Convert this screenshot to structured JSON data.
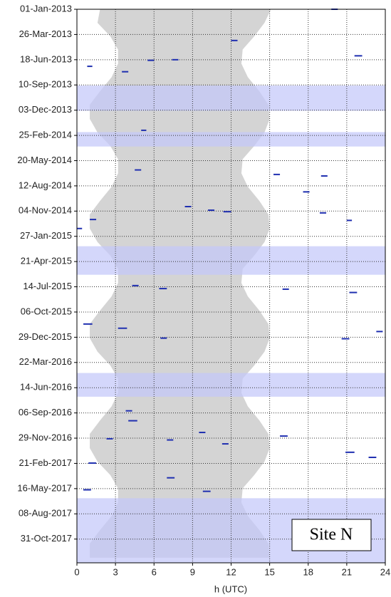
{
  "chart_data": {
    "type": "timeline",
    "xlabel": "h (UTC)",
    "legend_text": "Site N",
    "xlim": [
      0,
      24
    ],
    "xticks": [
      0,
      3,
      6,
      9,
      12,
      15,
      18,
      21,
      24
    ],
    "ylim": [
      "01-Jan-2013",
      "18-Jan-2018"
    ],
    "yticks": [
      "01-Jan-2013",
      "26-Mar-2013",
      "18-Jun-2013",
      "10-Sep-2013",
      "03-Dec-2013",
      "25-Feb-2014",
      "20-May-2014",
      "12-Aug-2014",
      "04-Nov-2014",
      "27-Jan-2015",
      "21-Apr-2015",
      "14-Jul-2015",
      "06-Oct-2015",
      "29-Dec-2015",
      "22-Mar-2016",
      "14-Jun-2016",
      "06-Sep-2016",
      "29-Nov-2016",
      "21-Feb-2017",
      "16-May-2017",
      "08-Aug-2017",
      "31-Oct-2017"
    ],
    "grid": true,
    "daylight": {
      "color": "#d4d4d4",
      "dates": [
        "01-Jan-2013",
        "15-Feb-2013",
        "01-Apr-2013",
        "15-May-2013",
        "01-Jul-2013",
        "15-Aug-2013",
        "01-Oct-2013",
        "15-Nov-2013",
        "01-Jan-2014",
        "15-Feb-2014",
        "01-Apr-2014",
        "15-May-2014",
        "01-Jul-2014",
        "15-Aug-2014",
        "01-Oct-2014",
        "15-Nov-2014",
        "01-Jan-2015",
        "15-Feb-2015",
        "01-Apr-2015",
        "15-May-2015",
        "01-Jul-2015",
        "15-Aug-2015",
        "01-Oct-2015",
        "15-Nov-2015",
        "01-Jan-2016",
        "15-Feb-2016",
        "01-Apr-2016",
        "15-May-2016",
        "01-Jul-2016",
        "15-Aug-2016",
        "01-Oct-2016",
        "15-Nov-2016",
        "01-Jan-2017",
        "15-Feb-2017",
        "01-Apr-2017",
        "15-May-2017",
        "01-Jul-2017",
        "15-Aug-2017",
        "01-Oct-2017",
        "15-Nov-2017",
        "01-Jan-2018"
      ],
      "start": [
        1.8,
        1.6,
        2.6,
        3.2,
        3.2,
        2.7,
        1.8,
        1.0,
        1.0,
        1.6,
        2.6,
        3.2,
        3.2,
        2.7,
        1.8,
        1.0,
        1.0,
        1.6,
        2.6,
        3.2,
        3.2,
        2.7,
        1.8,
        1.0,
        1.0,
        1.6,
        2.6,
        3.2,
        3.2,
        2.7,
        1.8,
        1.0,
        1.0,
        1.6,
        2.6,
        3.2,
        3.2,
        2.7,
        1.8,
        1.0,
        1.0
      ],
      "end": [
        15.1,
        14.6,
        13.8,
        12.9,
        12.8,
        13.3,
        14.2,
        14.9,
        15.0,
        14.6,
        13.8,
        12.9,
        12.8,
        13.3,
        14.2,
        14.9,
        15.0,
        14.6,
        13.8,
        12.9,
        12.8,
        13.3,
        14.2,
        14.9,
        15.0,
        14.6,
        13.8,
        12.9,
        12.8,
        13.3,
        14.2,
        14.9,
        15.0,
        14.6,
        13.8,
        12.9,
        12.8,
        13.3,
        14.2,
        14.9,
        15.0
      ]
    },
    "gaps": {
      "color": "rgba(196,200,250,0.72)",
      "start": [
        "12-Sep-2013",
        "14-Feb-2014",
        "01-Mar-2015",
        "26-Apr-2016",
        "17-Jun-2017"
      ],
      "end": [
        "05-Dec-2013",
        "03-Apr-2014",
        "04-Jun-2015",
        "14-Jul-2016",
        "18-Jan-2018"
      ]
    },
    "events": {
      "color": "#1f2fb0",
      "dates": [
        "01-Jan-2013",
        "05-Jun-2013",
        "10-Jul-2013",
        "18-Jun-2013",
        "15-Apr-2013",
        "28-Jul-2013",
        "20-Jun-2013",
        "08-Feb-2014",
        "20-Jun-2014",
        "05-Jul-2014",
        "10-Jul-2014",
        "01-Sep-2014",
        "20-Oct-2014",
        "01-Nov-2014",
        "06-Nov-2014",
        "10-Nov-2014",
        "02-Dec-2014",
        "05-Dec-2014",
        "01-Jan-2015",
        "10-Jul-2015",
        "20-Jul-2015",
        "22-Jul-2015",
        "02-Aug-2015",
        "15-Nov-2015",
        "29-Nov-2015",
        "10-Dec-2015",
        "01-Jan-2016",
        "03-Jan-2016",
        "30-Aug-2016",
        "02-Oct-2016",
        "10-Nov-2016",
        "22-Nov-2016",
        "01-Dec-2016",
        "05-Dec-2016",
        "18-Dec-2016",
        "15-Jan-2017",
        "01-Feb-2017",
        "20-Feb-2017",
        "10-Apr-2017",
        "20-May-2017",
        "25-May-2017"
      ],
      "start": [
        19.8,
        21.6,
        0.8,
        7.4,
        12.0,
        3.5,
        5.5,
        5.0,
        4.5,
        15.3,
        19.0,
        17.6,
        8.4,
        10.2,
        11.4,
        18.9,
        1.0,
        21.0,
        0.0,
        4.3,
        6.4,
        16.0,
        21.2,
        0.5,
        3.2,
        23.3,
        6.5,
        20.6,
        3.8,
        4.0,
        9.5,
        15.8,
        2.3,
        7.0,
        11.3,
        20.9,
        22.7,
        0.9,
        7.0,
        0.5,
        9.8
      ],
      "end": [
        20.3,
        22.2,
        1.2,
        7.9,
        12.5,
        4.0,
        6.0,
        5.4,
        5.0,
        15.8,
        19.5,
        18.1,
        8.9,
        10.7,
        12.0,
        19.4,
        1.5,
        21.4,
        0.4,
        4.8,
        7.0,
        16.5,
        21.8,
        1.2,
        3.9,
        23.8,
        7.0,
        21.2,
        4.3,
        4.7,
        10.0,
        16.4,
        2.8,
        7.5,
        11.8,
        21.6,
        23.3,
        1.5,
        7.6,
        1.1,
        10.4
      ]
    }
  }
}
